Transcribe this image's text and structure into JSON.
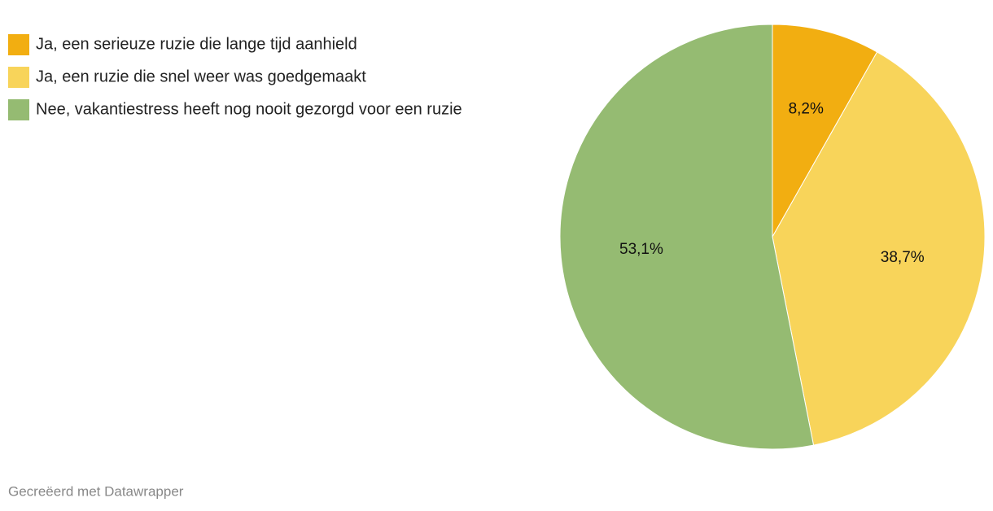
{
  "chart_data": {
    "type": "pie",
    "categories": [
      "Ja, een serieuze ruzie die lange tijd aanhield",
      "Ja, een ruzie die snel weer was goedgemaakt",
      "Nee, vakantiestress heeft nog nooit gezorgd voor een ruzie"
    ],
    "values": [
      8.2,
      38.7,
      53.1
    ],
    "value_labels": [
      "8,2%",
      "38,7%",
      "53,1%"
    ],
    "colors": [
      "#f2ae11",
      "#f8d45a",
      "#95bb72"
    ]
  },
  "credit": "Gecreëerd met Datawrapper"
}
